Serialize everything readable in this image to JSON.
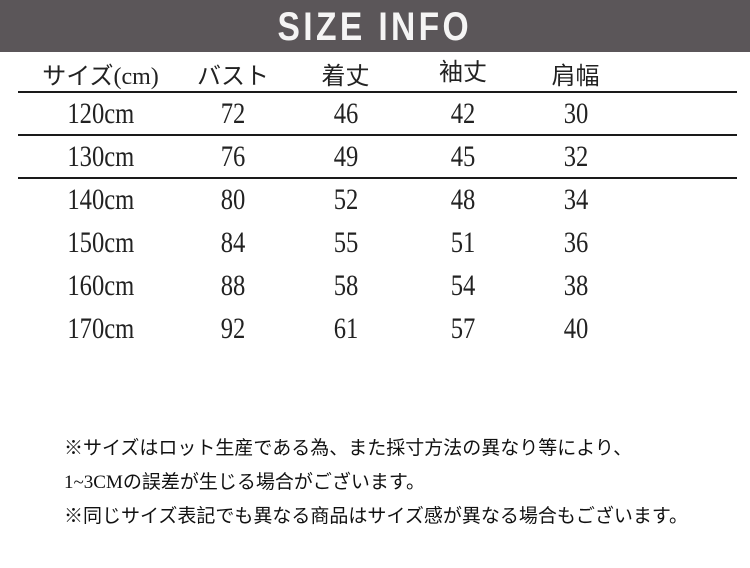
{
  "header": {
    "title": "SIZE INFO",
    "bg_color": "#5b5659",
    "text_color": "#f5f4f4"
  },
  "table": {
    "unit": "cm",
    "columns": [
      "サイズ(cm)",
      "バスト",
      "着丈",
      "袖丈",
      "肩幅"
    ],
    "rows": [
      [
        "120cm",
        "72",
        "46",
        "42",
        "30"
      ],
      [
        "130cm",
        "76",
        "49",
        "45",
        "32"
      ],
      [
        "140cm",
        "80",
        "52",
        "48",
        "34"
      ],
      [
        "150cm",
        "84",
        "55",
        "51",
        "36"
      ],
      [
        "160cm",
        "88",
        "58",
        "54",
        "38"
      ],
      [
        "170cm",
        "92",
        "61",
        "57",
        "40"
      ]
    ],
    "rule_color": "#1a1a1a"
  },
  "notes": [
    "※サイズはロット生産である為、また採寸方法の異なり等により、",
    "1~3CMの誤差が生じる場合がございます。",
    "※同じサイズ表記でも異なる商品はサイズ感が異なる場合もございます。"
  ]
}
